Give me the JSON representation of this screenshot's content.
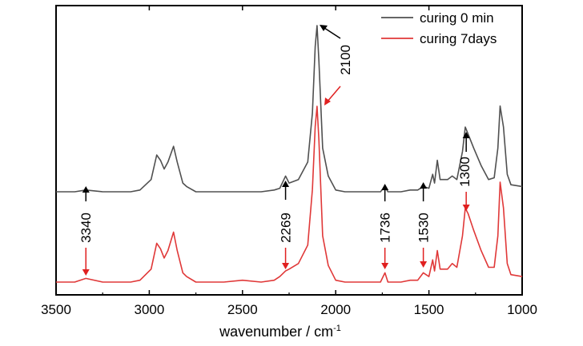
{
  "chart_data": {
    "type": "line",
    "xlabel": "wavenumber / cm",
    "xlabel_superscript": "-1",
    "xlim": [
      3500,
      1000
    ],
    "x_reversed": true,
    "x_ticks": [
      3500,
      3000,
      2500,
      2000,
      1500,
      1000
    ],
    "x_tick_labels": [
      "3500",
      "3000",
      "2500",
      "2000",
      "1500",
      "1000"
    ],
    "y_ticks_shown": false,
    "grid": false,
    "legend_position": "top-right",
    "series": [
      {
        "name": "curing 0 min",
        "color": "#505050",
        "points": [
          [
            3500,
            0.05
          ],
          [
            3400,
            0.05
          ],
          [
            3340,
            0.06
          ],
          [
            3250,
            0.05
          ],
          [
            3100,
            0.05
          ],
          [
            3050,
            0.06
          ],
          [
            2990,
            0.12
          ],
          [
            2960,
            0.26
          ],
          [
            2940,
            0.23
          ],
          [
            2920,
            0.18
          ],
          [
            2900,
            0.22
          ],
          [
            2870,
            0.31
          ],
          [
            2850,
            0.22
          ],
          [
            2820,
            0.1
          ],
          [
            2800,
            0.08
          ],
          [
            2750,
            0.05
          ],
          [
            2600,
            0.05
          ],
          [
            2500,
            0.05
          ],
          [
            2400,
            0.05
          ],
          [
            2330,
            0.06
          ],
          [
            2300,
            0.07
          ],
          [
            2269,
            0.14
          ],
          [
            2250,
            0.1
          ],
          [
            2200,
            0.12
          ],
          [
            2150,
            0.22
          ],
          [
            2125,
            0.5
          ],
          [
            2110,
            0.88
          ],
          [
            2100,
            1.0
          ],
          [
            2090,
            0.8
          ],
          [
            2070,
            0.3
          ],
          [
            2040,
            0.14
          ],
          [
            2000,
            0.06
          ],
          [
            1950,
            0.05
          ],
          [
            1800,
            0.05
          ],
          [
            1760,
            0.05
          ],
          [
            1736,
            0.08
          ],
          [
            1720,
            0.05
          ],
          [
            1650,
            0.05
          ],
          [
            1600,
            0.06
          ],
          [
            1560,
            0.06
          ],
          [
            1530,
            0.08
          ],
          [
            1500,
            0.07
          ],
          [
            1480,
            0.15
          ],
          [
            1470,
            0.1
          ],
          [
            1455,
            0.23
          ],
          [
            1440,
            0.12
          ],
          [
            1400,
            0.12
          ],
          [
            1375,
            0.14
          ],
          [
            1350,
            0.12
          ],
          [
            1320,
            0.28
          ],
          [
            1305,
            0.42
          ],
          [
            1290,
            0.38
          ],
          [
            1260,
            0.3
          ],
          [
            1220,
            0.2
          ],
          [
            1180,
            0.12
          ],
          [
            1150,
            0.13
          ],
          [
            1130,
            0.3
          ],
          [
            1118,
            0.54
          ],
          [
            1100,
            0.42
          ],
          [
            1080,
            0.15
          ],
          [
            1060,
            0.09
          ],
          [
            1000,
            0.08
          ]
        ]
      },
      {
        "name": "curing 7days",
        "color": "#e03838",
        "points": [
          [
            3500,
            0.05
          ],
          [
            3400,
            0.05
          ],
          [
            3340,
            0.07
          ],
          [
            3250,
            0.05
          ],
          [
            3100,
            0.05
          ],
          [
            3050,
            0.06
          ],
          [
            2990,
            0.12
          ],
          [
            2960,
            0.26
          ],
          [
            2940,
            0.23
          ],
          [
            2920,
            0.18
          ],
          [
            2900,
            0.22
          ],
          [
            2870,
            0.32
          ],
          [
            2850,
            0.22
          ],
          [
            2820,
            0.1
          ],
          [
            2800,
            0.08
          ],
          [
            2750,
            0.05
          ],
          [
            2600,
            0.05
          ],
          [
            2500,
            0.06
          ],
          [
            2400,
            0.05
          ],
          [
            2330,
            0.06
          ],
          [
            2300,
            0.08
          ],
          [
            2269,
            0.11
          ],
          [
            2250,
            0.12
          ],
          [
            2200,
            0.15
          ],
          [
            2150,
            0.25
          ],
          [
            2125,
            0.55
          ],
          [
            2110,
            0.89
          ],
          [
            2100,
            1.0
          ],
          [
            2090,
            0.82
          ],
          [
            2070,
            0.3
          ],
          [
            2040,
            0.14
          ],
          [
            2000,
            0.06
          ],
          [
            1950,
            0.05
          ],
          [
            1800,
            0.05
          ],
          [
            1760,
            0.05
          ],
          [
            1736,
            0.1
          ],
          [
            1720,
            0.05
          ],
          [
            1650,
            0.05
          ],
          [
            1600,
            0.06
          ],
          [
            1560,
            0.06
          ],
          [
            1530,
            0.1
          ],
          [
            1500,
            0.08
          ],
          [
            1480,
            0.17
          ],
          [
            1470,
            0.11
          ],
          [
            1455,
            0.22
          ],
          [
            1440,
            0.12
          ],
          [
            1400,
            0.12
          ],
          [
            1375,
            0.15
          ],
          [
            1350,
            0.13
          ],
          [
            1320,
            0.3
          ],
          [
            1305,
            0.45
          ],
          [
            1290,
            0.42
          ],
          [
            1260,
            0.33
          ],
          [
            1220,
            0.22
          ],
          [
            1180,
            0.13
          ],
          [
            1150,
            0.13
          ],
          [
            1130,
            0.3
          ],
          [
            1118,
            0.59
          ],
          [
            1100,
            0.45
          ],
          [
            1080,
            0.15
          ],
          [
            1060,
            0.09
          ],
          [
            1000,
            0.08
          ]
        ]
      }
    ],
    "annotations": [
      {
        "label": "3340",
        "x": 3340,
        "arrow_color": "#e02020"
      },
      {
        "label": "2269",
        "x": 2269,
        "arrow_color": "#e02020"
      },
      {
        "label": "2100",
        "x": 2100,
        "arrow_color": "#e02020"
      },
      {
        "label": "1736",
        "x": 1736,
        "arrow_color": "#e02020"
      },
      {
        "label": "1530",
        "x": 1530,
        "arrow_color": "#e02020"
      },
      {
        "label": "1300",
        "x": 1300,
        "arrow_color": "#e02020"
      }
    ]
  }
}
